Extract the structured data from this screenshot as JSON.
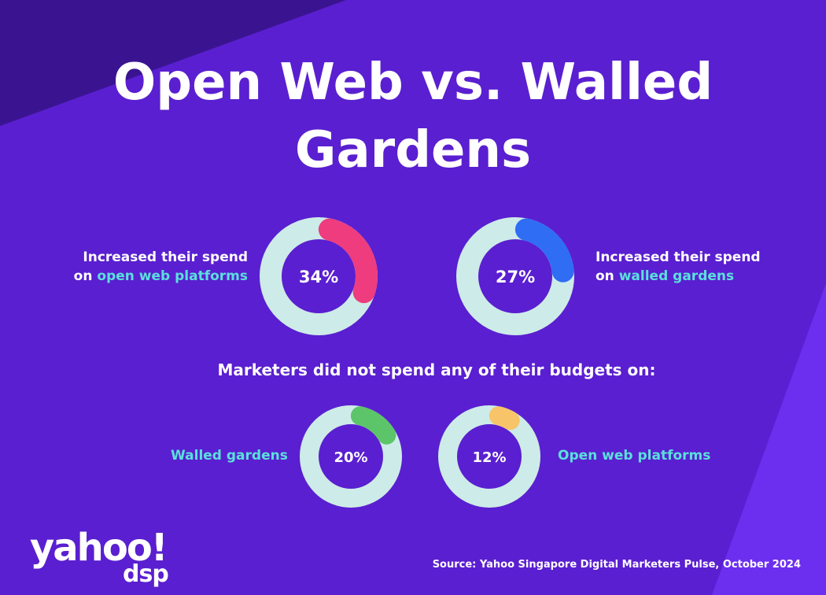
{
  "title": "Open Web vs. Walled Gardens",
  "chart_data": {
    "type": "pie",
    "charts": [
      {
        "id": "increased-open-web",
        "value": 34,
        "display": "34%",
        "label_prefix": "Increased their spend on ",
        "label_highlight": "open web platforms",
        "color": "#ee3c7e"
      },
      {
        "id": "increased-walled-gardens",
        "value": 27,
        "display": "27%",
        "label_prefix": "Increased their spend on ",
        "label_highlight": "walled gardens",
        "color": "#2f6df5"
      },
      {
        "id": "no-spend-walled-gardens",
        "value": 20,
        "display": "20%",
        "label": "Walled gardens",
        "color": "#5cc56a"
      },
      {
        "id": "no-spend-open-web",
        "value": 12,
        "display": "12%",
        "label": "Open web platforms",
        "color": "#f7c469"
      }
    ],
    "track_color": "#cdebe8"
  },
  "labels": {
    "increased_prefix_line1": "Increased their spend",
    "on_word": "on",
    "open_web_hl": "open web platforms",
    "walled_gardens_hl": "walled gardens",
    "no_spend_heading": "Marketers did not spend any of their budgets on:",
    "walled_gardens": "Walled gardens",
    "open_web_platforms": "Open web platforms"
  },
  "logo": {
    "main": "yahoo!",
    "sub": "dsp"
  },
  "source": "Source: Yahoo Singapore Digital Marketers Pulse, October 2024",
  "colors": {
    "background": "#5a1fd0",
    "corner_dark": "#3a1490",
    "corner_light": "#6c2ff0",
    "highlight_text": "#5ae0dc"
  }
}
